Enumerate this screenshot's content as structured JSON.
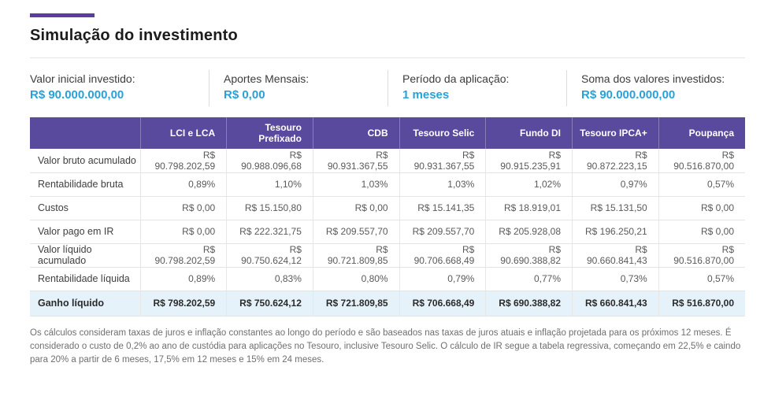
{
  "page": {
    "title": "Simulação do investimento"
  },
  "colors": {
    "accent_purple": "#5a3d9e",
    "header_purple": "#5a4a9e",
    "value_blue": "#29a1d8",
    "highlight_row_bg": "#e5f2fa"
  },
  "summary": {
    "items": [
      {
        "label": "Valor inicial investido:",
        "value": "R$ 90.000.000,00"
      },
      {
        "label": "Aportes Mensais:",
        "value": "R$ 0,00"
      },
      {
        "label": "Período da aplicação:",
        "value": "1 meses"
      },
      {
        "label": "Soma dos valores investidos:",
        "value": "R$ 90.000.000,00"
      }
    ]
  },
  "table": {
    "columns": [
      "LCI e LCA",
      "Tesouro Prefixado",
      "CDB",
      "Tesouro Selic",
      "Fundo DI",
      "Tesouro IPCA+",
      "Poupança"
    ],
    "rows": [
      {
        "label": "Valor bruto acumulado",
        "values": [
          "R$ 90.798.202,59",
          "R$ 90.988.096,68",
          "R$ 90.931.367,55",
          "R$ 90.931.367,55",
          "R$ 90.915.235,91",
          "R$ 90.872.223,15",
          "R$ 90.516.870,00"
        ]
      },
      {
        "label": "Rentabilidade bruta",
        "values": [
          "0,89%",
          "1,10%",
          "1,03%",
          "1,03%",
          "1,02%",
          "0,97%",
          "0,57%"
        ]
      },
      {
        "label": "Custos",
        "values": [
          "R$ 0,00",
          "R$ 15.150,80",
          "R$ 0,00",
          "R$ 15.141,35",
          "R$ 18.919,01",
          "R$ 15.131,50",
          "R$ 0,00"
        ]
      },
      {
        "label": "Valor pago em IR",
        "values": [
          "R$ 0,00",
          "R$ 222.321,75",
          "R$ 209.557,70",
          "R$ 209.557,70",
          "R$ 205.928,08",
          "R$ 196.250,21",
          "R$ 0,00"
        ]
      },
      {
        "label": "Valor líquido acumulado",
        "values": [
          "R$ 90.798.202,59",
          "R$ 90.750.624,12",
          "R$ 90.721.809,85",
          "R$ 90.706.668,49",
          "R$ 90.690.388,82",
          "R$ 90.660.841,43",
          "R$ 90.516.870,00"
        ]
      },
      {
        "label": "Rentabilidade líquida",
        "values": [
          "0,89%",
          "0,83%",
          "0,80%",
          "0,79%",
          "0,77%",
          "0,73%",
          "0,57%"
        ]
      },
      {
        "label": "Ganho líquido",
        "values": [
          "R$ 798.202,59",
          "R$ 750.624,12",
          "R$ 721.809,85",
          "R$ 706.668,49",
          "R$ 690.388,82",
          "R$ 660.841,43",
          "R$ 516.870,00"
        ]
      }
    ]
  },
  "footnote": "Os cálculos consideram taxas de juros e inflação constantes ao longo do período e são baseados nas taxas de juros atuais e inflação projetada para os próximos 12 meses. É considerado o custo de 0,2% ao ano de custódia para aplicações no Tesouro, inclusive Tesouro Selic. O cálculo de IR segue a tabela regressiva, começando em 22,5% e caindo para 20% a partir de 6 meses, 17,5% em 12 meses e 15% em 24 meses."
}
